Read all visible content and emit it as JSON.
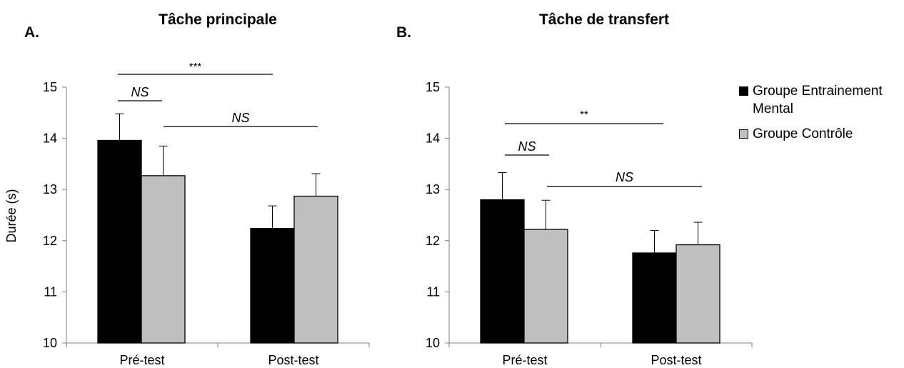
{
  "chart_data": [
    {
      "type": "bar",
      "panel_label": "A.",
      "title": "Tâche principale",
      "ylabel": "Durée (s)",
      "xlabel": "",
      "ylim": [
        10,
        15
      ],
      "yticks": [
        "10",
        "11",
        "12",
        "13",
        "14",
        "15"
      ],
      "categories": [
        "Pré-test",
        "Post-test"
      ],
      "series": [
        {
          "name": "Groupe Entrainement Mental",
          "values": [
            13.96,
            12.24
          ],
          "error": [
            0.52,
            0.44
          ],
          "color": "#000000"
        },
        {
          "name": "Groupe Contrôle",
          "values": [
            13.27,
            12.87
          ],
          "error": [
            0.58,
            0.44
          ],
          "color": "#bfbfbf"
        }
      ],
      "annotations": [
        {
          "text": "***",
          "italic": false
        },
        {
          "text": "NS",
          "italic": true
        },
        {
          "text": "NS",
          "italic": true
        }
      ]
    },
    {
      "type": "bar",
      "panel_label": "B.",
      "title": "Tâche de transfert",
      "ylabel": "",
      "xlabel": "",
      "ylim": [
        10,
        15
      ],
      "yticks": [
        "10",
        "11",
        "12",
        "13",
        "14",
        "15"
      ],
      "categories": [
        "Pré-test",
        "Post-test"
      ],
      "series": [
        {
          "name": "Groupe Entrainement Mental",
          "values": [
            12.8,
            11.76
          ],
          "error": [
            0.53,
            0.44
          ],
          "color": "#000000"
        },
        {
          "name": "Groupe Contrôle",
          "values": [
            12.22,
            11.92
          ],
          "error": [
            0.57,
            0.44
          ],
          "color": "#bfbfbf"
        }
      ],
      "annotations": [
        {
          "text": "**",
          "italic": false
        },
        {
          "text": "NS",
          "italic": true
        },
        {
          "text": "NS",
          "italic": true
        }
      ]
    }
  ],
  "legend": {
    "placement": "right",
    "items": [
      {
        "label": "Groupe Entrainement Mental",
        "color": "#000000"
      },
      {
        "label": "Groupe Contrôle",
        "color": "#bfbfbf"
      }
    ]
  }
}
